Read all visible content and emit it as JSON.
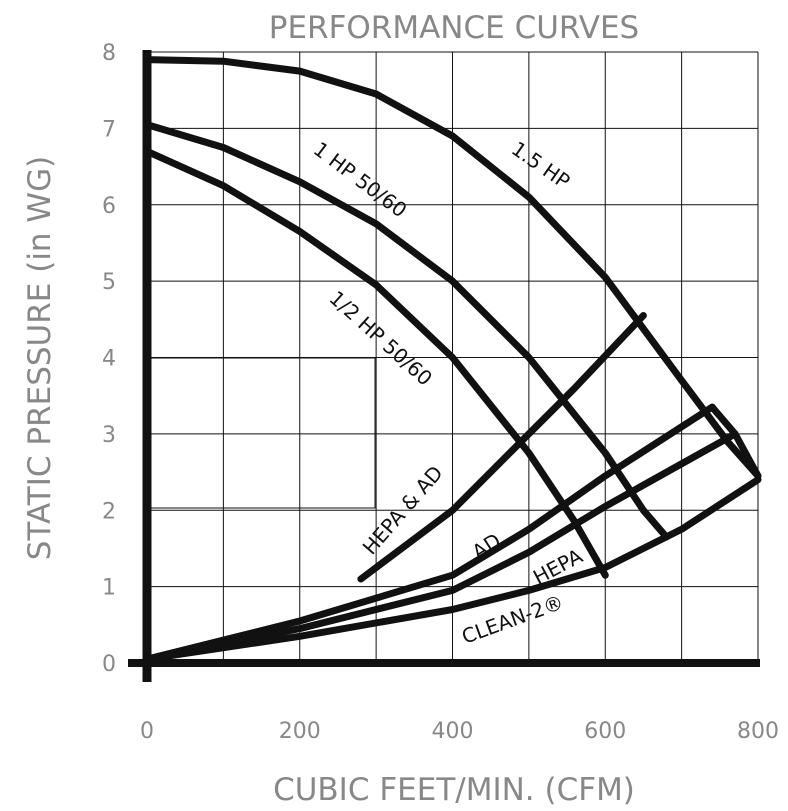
{
  "chart_data": {
    "type": "line",
    "title": "PERFORMANCE CURVES",
    "xlabel": "CUBIC FEET/MIN. (CFM)",
    "ylabel": "STATIC PRESSURE (in WG)",
    "xlim": [
      0,
      800
    ],
    "ylim": [
      0,
      8
    ],
    "xticks": [
      "0",
      "200",
      "400",
      "600",
      "800"
    ],
    "yticks": [
      "0",
      "1",
      "2",
      "3",
      "4",
      "5",
      "6",
      "7",
      "8"
    ],
    "grid": true,
    "fan_curves": [
      {
        "name": "1.5 HP",
        "x": [
          0,
          100,
          200,
          300,
          400,
          500,
          600,
          700,
          760,
          800
        ],
        "y": [
          7.9,
          7.88,
          7.75,
          7.45,
          6.9,
          6.1,
          5.05,
          3.7,
          2.9,
          2.45
        ]
      },
      {
        "name": "1 HP 50/60",
        "x": [
          0,
          100,
          200,
          300,
          400,
          500,
          600,
          650,
          680
        ],
        "y": [
          7.05,
          6.75,
          6.3,
          5.75,
          5.0,
          4.0,
          2.75,
          2.0,
          1.65
        ]
      },
      {
        "name": "1/2 HP 50/60",
        "x": [
          0,
          100,
          200,
          300,
          400,
          500,
          560,
          600
        ],
        "y": [
          6.7,
          6.25,
          5.65,
          4.95,
          4.0,
          2.75,
          1.85,
          1.15
        ]
      }
    ],
    "system_curves": [
      {
        "name": "HEPA & AD",
        "x": [
          280,
          400,
          490,
          560,
          650
        ],
        "y": [
          1.1,
          2.0,
          2.9,
          3.6,
          4.55
        ]
      },
      {
        "name": "AD",
        "x": [
          0,
          200,
          400,
          500,
          600,
          740
        ],
        "y": [
          0.05,
          0.55,
          1.15,
          1.75,
          2.45,
          3.35
        ]
      },
      {
        "name": "HEPA",
        "x": [
          0,
          200,
          400,
          500,
          600,
          770
        ],
        "y": [
          0.05,
          0.45,
          0.95,
          1.45,
          2.05,
          3.0
        ]
      },
      {
        "name": "CLEAN-2®",
        "x": [
          0,
          200,
          400,
          500,
          600,
          700,
          800
        ],
        "y": [
          0.05,
          0.35,
          0.7,
          0.95,
          1.25,
          1.75,
          2.4
        ]
      }
    ],
    "colors": {
      "ink": "#111111",
      "text": "#888888"
    }
  }
}
